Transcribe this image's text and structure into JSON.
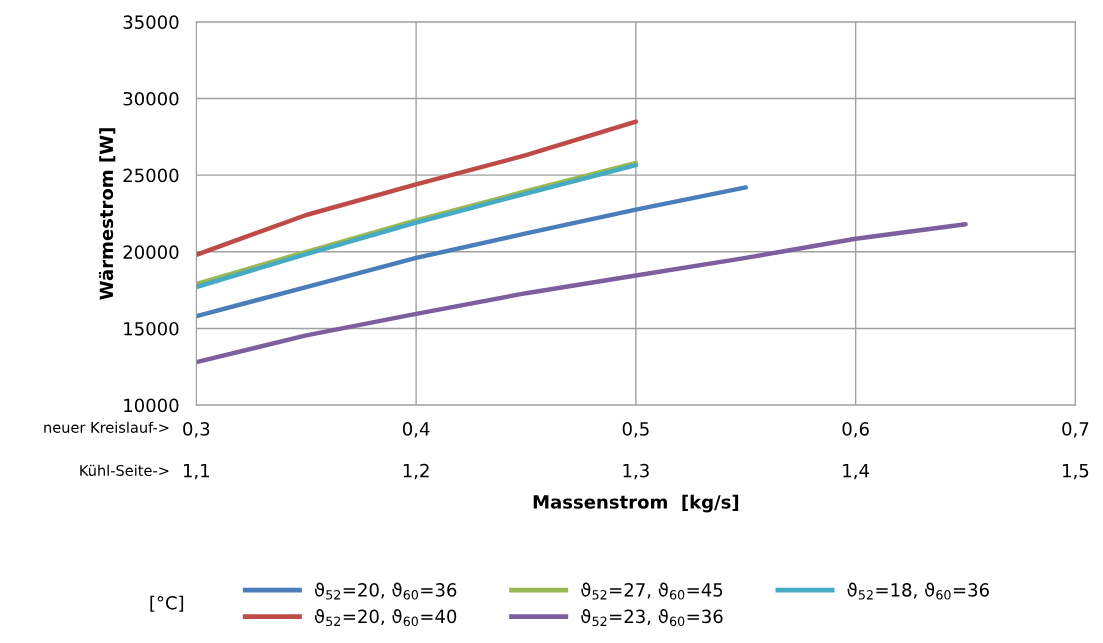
{
  "chart_data": {
    "type": "line",
    "xlabel": "Massenstrom  [kg/s]",
    "ylabel": "Wärmestrom [W]",
    "legend_title": "[°C]",
    "annotations": [
      "neuer Kreislauf->",
      "Kühl-Seite->"
    ],
    "xlim": [
      0.3,
      0.7
    ],
    "xticks": [
      {
        "value": 0.3,
        "label": "0,3"
      },
      {
        "value": 0.4,
        "label": "0,4"
      },
      {
        "value": 0.5,
        "label": "0,5"
      },
      {
        "value": 0.6,
        "label": "0,6"
      },
      {
        "value": 0.7,
        "label": "0,7"
      }
    ],
    "x2lim": [
      1.1,
      1.5
    ],
    "x2ticks": [
      {
        "value": 1.1,
        "label": "1,1"
      },
      {
        "value": 1.2,
        "label": "1,2"
      },
      {
        "value": 1.3,
        "label": "1,3"
      },
      {
        "value": 1.4,
        "label": "1,4"
      },
      {
        "value": 1.5,
        "label": "1,5"
      }
    ],
    "ylim": [
      10000,
      35000
    ],
    "yticks": [
      10000,
      15000,
      20000,
      25000,
      30000,
      35000
    ],
    "grid": true,
    "legend": "bottom",
    "marker": "none",
    "line_style": "solid",
    "series": [
      {
        "name": "ϑ$_{52}$=20, ϑ$_{60}$=36",
        "color": "#4a7ebb",
        "x": [
          0.3,
          0.35,
          0.4,
          0.45,
          0.5,
          0.55
        ],
        "values": [
          15800,
          17700,
          19600,
          21200,
          22750,
          24200
        ]
      },
      {
        "name": "ϑ$_{52}$=20, ϑ$_{60}$=40",
        "color": "#be4b48",
        "x": [
          0.3,
          0.35,
          0.4,
          0.45,
          0.5
        ],
        "values": [
          19800,
          22400,
          24400,
          26300,
          28500
        ]
      },
      {
        "name": "ϑ$_{52}$=27, ϑ$_{60}$=45",
        "color": "#98b954",
        "x": [
          0.3,
          0.35,
          0.4,
          0.45,
          0.5
        ],
        "values": [
          17900,
          20000,
          22050,
          23950,
          25800
        ]
      },
      {
        "name": "ϑ$_{52}$=23, ϑ$_{60}$=36",
        "color": "#7d5fa0",
        "x": [
          0.3,
          0.35,
          0.4,
          0.45,
          0.5,
          0.55,
          0.6,
          0.65
        ],
        "values": [
          12800,
          14550,
          15950,
          17300,
          18450,
          19600,
          20850,
          21800
        ]
      },
      {
        "name": "ϑ$_{52}$=18, ϑ$_{60}$=36",
        "color": "#46aac5",
        "x": [
          0.3,
          0.35,
          0.4,
          0.45,
          0.5
        ],
        "values": [
          17700,
          19850,
          21900,
          23800,
          25650
        ]
      }
    ]
  }
}
